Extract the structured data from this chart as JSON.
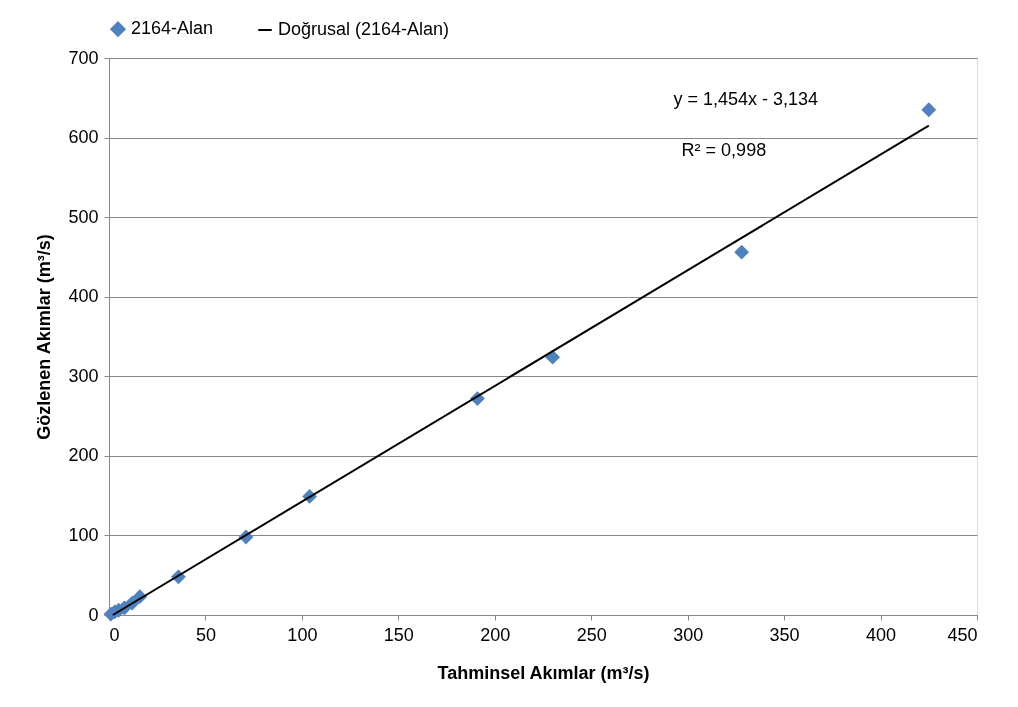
{
  "chart_data": {
    "type": "scatter",
    "xlabel": "Tahminsel Akımlar (m³/s)",
    "ylabel": "Gözlenen  Akımlar (m³/s)",
    "series": [
      {
        "name": "2164-Alan",
        "color": "#4f81bd",
        "marker": "diamond",
        "x": [
          1,
          3,
          5,
          8,
          12,
          16,
          36,
          71,
          104,
          191,
          230,
          328,
          425
        ],
        "values": [
          1,
          4,
          6,
          9,
          15,
          23,
          48,
          98,
          149,
          272,
          324,
          456,
          635
        ]
      },
      {
        "name": "Doğrusal (2164-Alan)",
        "type": "line",
        "color": "#000000",
        "x": [
          2,
          425
        ],
        "values": [
          0,
          615
        ]
      }
    ],
    "annotations": [
      "y = 1,454x - 3,134",
      "R² = 0,998"
    ],
    "xlim": [
      0,
      450
    ],
    "xticks": [
      0,
      50,
      100,
      150,
      200,
      250,
      300,
      350,
      400,
      450
    ],
    "ylim": [
      0,
      700
    ],
    "yticks": [
      0,
      100,
      200,
      300,
      400,
      500,
      600,
      700
    ],
    "grid": "y",
    "legend": "top"
  }
}
